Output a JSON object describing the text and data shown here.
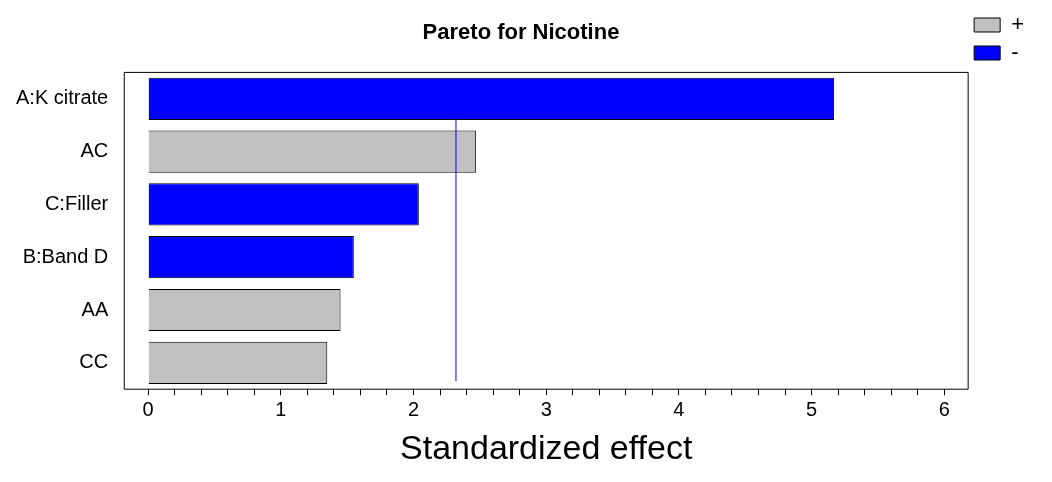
{
  "chart_data": {
    "type": "bar",
    "title": "Pareto for Nicotine",
    "xlabel": "Standardized effect",
    "orientation": "horizontal",
    "categories": [
      "A:K citrate",
      "AC",
      "C:Filler",
      "B:Band D",
      "AA",
      "CC"
    ],
    "series": [
      {
        "name": "+",
        "color": "#c0c0c0",
        "values": [
          null,
          2.47,
          null,
          null,
          1.45,
          1.35
        ]
      },
      {
        "name": "-",
        "color": "#0000ff",
        "values": [
          5.17,
          null,
          2.04,
          1.55,
          null,
          null
        ]
      }
    ],
    "xlim": [
      -0.18,
      6.18
    ],
    "xticks": [
      0,
      {
        "value": 0.2,
        "label": null
      },
      {
        "value": 0.4,
        "label": null
      },
      {
        "value": 0.6,
        "label": null
      },
      {
        "value": 0.8,
        "label": null
      },
      1,
      {
        "value": 1.2,
        "label": null
      },
      {
        "value": 1.4,
        "label": null
      },
      {
        "value": 1.6,
        "label": null
      },
      {
        "value": 1.8,
        "label": null
      },
      2,
      {
        "value": 2.2,
        "label": null
      },
      {
        "value": 2.4,
        "label": null
      },
      {
        "value": 2.6,
        "label": null
      },
      {
        "value": 2.8,
        "label": null
      },
      3,
      {
        "value": 3.2,
        "label": null
      },
      {
        "value": 3.4,
        "label": null
      },
      {
        "value": 3.6,
        "label": null
      },
      {
        "value": 3.8,
        "label": null
      },
      4,
      {
        "value": 4.2,
        "label": null
      },
      {
        "value": 4.4,
        "label": null
      },
      {
        "value": 4.6,
        "label": null
      },
      {
        "value": 4.8,
        "label": null
      },
      5,
      {
        "value": 5.2,
        "label": null
      },
      {
        "value": 5.4,
        "label": null
      },
      {
        "value": 5.6,
        "label": null
      },
      {
        "value": 5.8,
        "label": null
      },
      6
    ],
    "ref_lines": [
      {
        "axis": "x",
        "value": 2.32,
        "color": "#0000ff"
      }
    ],
    "grid": false,
    "legend": "top right"
  }
}
